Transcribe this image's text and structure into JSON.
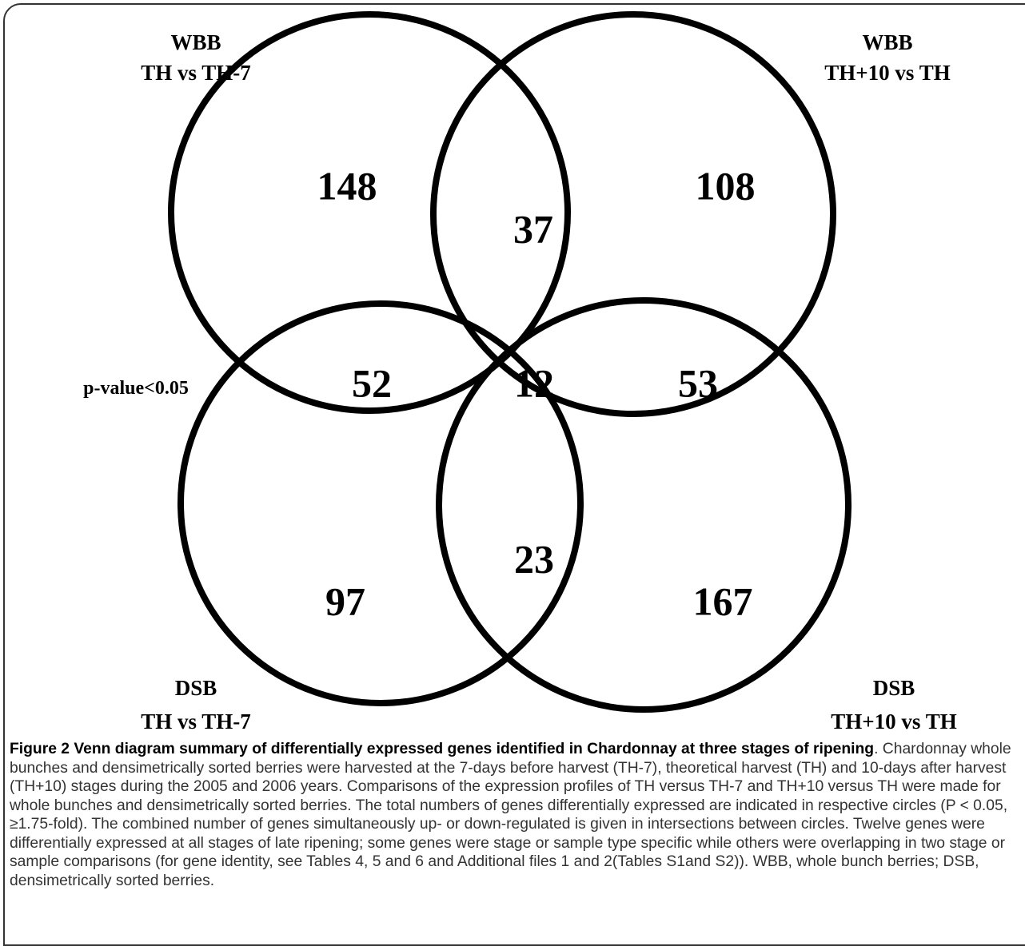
{
  "figure": {
    "sets": [
      {
        "name": "WBB",
        "label": "TH vs TH-7"
      },
      {
        "name": "WBB",
        "label": "TH+10 vs TH"
      },
      {
        "name": "DSB",
        "label": "TH vs TH-7"
      },
      {
        "name": "DSB",
        "label": "TH+10 vs TH"
      }
    ],
    "regions": {
      "wbb_th_only": "148",
      "wbb_both": "37",
      "wbb_th10_only": "108",
      "left_overlap": "52",
      "all": "12",
      "right_overlap": "53",
      "dsb_both": "23",
      "dsb_th_only": "97",
      "dsb_th10_only": "167"
    },
    "note": "p-value<0.05"
  },
  "caption": {
    "title": "Figure 2 Venn diagram summary of differentially expressed genes identified in Chardonnay at three stages of ripening",
    "text": ". Chardonnay whole bunches and densimetrically sorted berries were harvested at the 7-days before harvest (TH-7), theoretical harvest (TH) and 10-days after harvest (TH+10) stages during the 2005 and 2006 years. Comparisons of the expression profiles of TH versus TH-7 and TH+10 versus TH were made for whole bunches and densimetrically sorted berries. The total numbers of genes differentially expressed are indicated in respective circles (P < 0.05, ≥1.75-fold). The combined number of genes simultaneously up- or down-regulated is given in intersections between circles. Twelve genes were differentially expressed at all stages of late ripening; some genes were stage or sample type specific while others were overlapping in two stage or sample comparisons (for gene identity, see Tables 4, 5 and 6 and Additional files 1 and 2(Tables S1and S2)). WBB, whole bunch berries; DSB, densimetrically sorted berries."
  }
}
